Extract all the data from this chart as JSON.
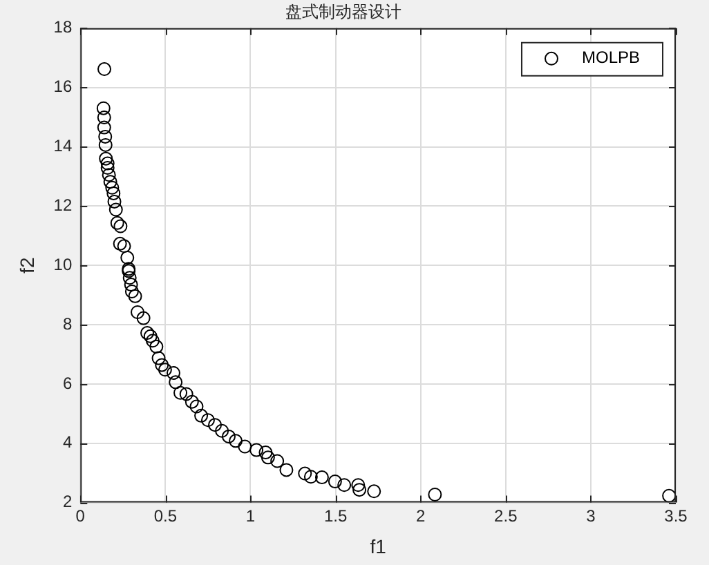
{
  "chart_data": {
    "type": "scatter",
    "title": "盘式制动器设计",
    "xlabel": "f1",
    "ylabel": "f2",
    "xlim": [
      0,
      3.5
    ],
    "xticks": [
      0,
      0.5,
      1,
      1.5,
      2,
      2.5,
      3,
      3.5
    ],
    "ylim": [
      2,
      18
    ],
    "yticks": [
      2,
      4,
      6,
      8,
      10,
      12,
      14,
      16,
      18
    ],
    "grid": true,
    "legend": "top right",
    "marker": "circle",
    "series": [
      {
        "name": "MOLPB",
        "color": "#000000",
        "x": [
          0.141,
          0.136,
          0.14,
          0.14,
          0.146,
          0.148,
          0.15,
          0.16,
          0.16,
          0.168,
          0.176,
          0.187,
          0.195,
          0.2,
          0.209,
          0.217,
          0.236,
          0.233,
          0.257,
          0.276,
          0.284,
          0.284,
          0.29,
          0.298,
          0.303,
          0.322,
          0.336,
          0.371,
          0.393,
          0.412,
          0.425,
          0.447,
          0.46,
          0.479,
          0.498,
          0.547,
          0.56,
          0.588,
          0.623,
          0.656,
          0.683,
          0.71,
          0.75,
          0.791,
          0.832,
          0.872,
          0.913,
          0.967,
          1.035,
          1.089,
          1.103,
          1.157,
          1.211,
          1.32,
          1.355,
          1.42,
          1.497,
          1.551,
          1.633,
          1.64,
          1.726,
          2.084,
          3.46
        ],
        "values": [
          16.62,
          15.3,
          14.99,
          14.65,
          14.34,
          14.06,
          13.6,
          13.44,
          13.29,
          13.05,
          12.82,
          12.62,
          12.43,
          12.15,
          11.88,
          11.43,
          11.32,
          10.73,
          10.65,
          10.26,
          9.88,
          9.81,
          9.58,
          9.35,
          9.12,
          8.96,
          8.42,
          8.22,
          7.72,
          7.61,
          7.46,
          7.26,
          6.87,
          6.64,
          6.48,
          6.37,
          6.06,
          5.7,
          5.66,
          5.4,
          5.24,
          4.93,
          4.78,
          4.62,
          4.42,
          4.23,
          4.08,
          3.89,
          3.77,
          3.69,
          3.52,
          3.4,
          3.1,
          2.98,
          2.87,
          2.85,
          2.71,
          2.59,
          2.59,
          2.43,
          2.38,
          2.27,
          2.23
        ]
      }
    ]
  }
}
